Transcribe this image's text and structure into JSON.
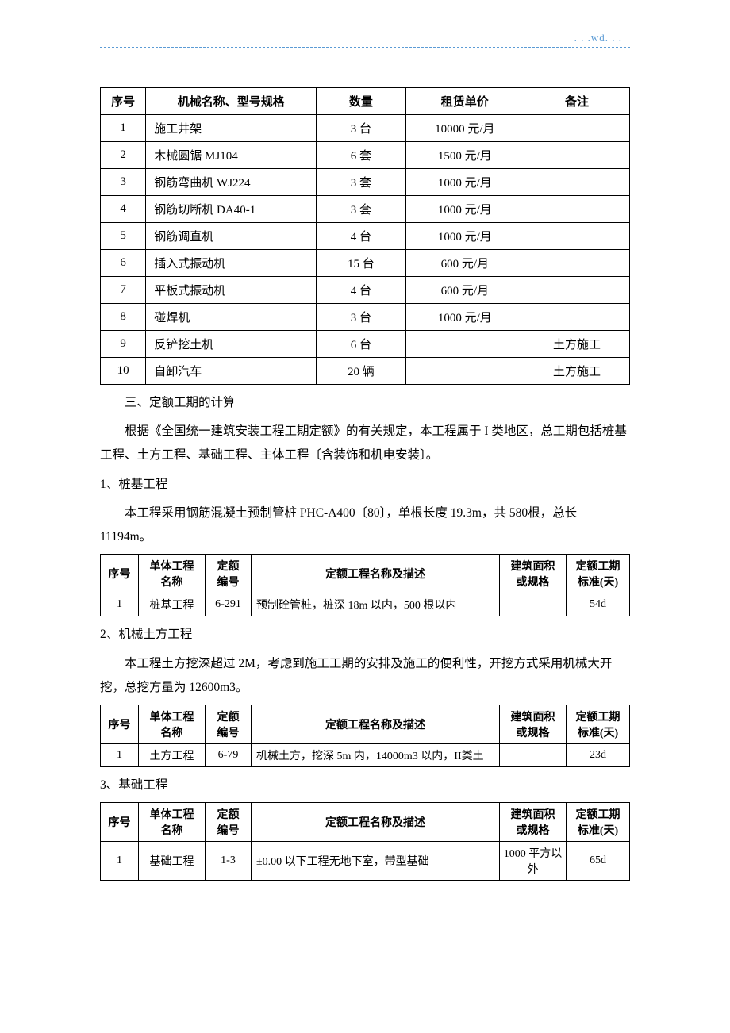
{
  "header": {
    "watermark": ". . .wd. . ."
  },
  "equip_table": {
    "headers": [
      "序号",
      "机械名称、型号规格",
      "数量",
      "租赁单价",
      "备注"
    ],
    "rows": [
      {
        "no": "1",
        "name": "施工井架",
        "qty": "3 台",
        "price": "10000 元/月",
        "note": ""
      },
      {
        "no": "2",
        "name": "木械圆锯 MJ104",
        "qty": "6 套",
        "price": "1500 元/月",
        "note": ""
      },
      {
        "no": "3",
        "name": "钢筋弯曲机 WJ224",
        "qty": "3 套",
        "price": "1000 元/月",
        "note": ""
      },
      {
        "no": "4",
        "name": "钢筋切断机 DA40-1",
        "qty": "3 套",
        "price": "1000 元/月",
        "note": ""
      },
      {
        "no": "5",
        "name": "钢筋调直机",
        "qty": "4 台",
        "price": "1000 元/月",
        "note": ""
      },
      {
        "no": "6",
        "name": "插入式振动机",
        "qty": "15 台",
        "price": "600 元/月",
        "note": ""
      },
      {
        "no": "7",
        "name": "平板式振动机",
        "qty": "4 台",
        "price": "600 元/月",
        "note": ""
      },
      {
        "no": "8",
        "name": "碰焊机",
        "qty": "3 台",
        "price": "1000 元/月",
        "note": ""
      },
      {
        "no": "9",
        "name": "反铲挖土机",
        "qty": "6 台",
        "price": "",
        "note": "土方施工"
      },
      {
        "no": "10",
        "name": "自卸汽车",
        "qty": "20 辆",
        "price": "",
        "note": "土方施工"
      }
    ]
  },
  "section3_title": "三、定额工期的计算",
  "section3_body": "根据《全国统一建筑安装工程工期定额》的有关规定，本工程属于 I 类地区，总工期包括桩基工程、土方工程、基础工程、主体工程〔含装饰和机电安装〕。",
  "sub1_title": "1、桩基工程",
  "sub1_body": "本工程采用钢筋混凝土预制管桩 PHC-A400〔80〕，单根长度 19.3m，共 580根，总长 11194m。",
  "sched_headers": {
    "c1": "序号",
    "c2": "单体工程名称",
    "c3": "定额编号",
    "c4": "定额工程名称及描述",
    "c5": "建筑面积或规格",
    "c6": "定额工期标准(天)"
  },
  "sched_headers_split": {
    "c2a": "单体工程",
    "c2b": "名称",
    "c3a": "定额",
    "c3b": "编号",
    "c5a": "建筑面积",
    "c5b": "或规格",
    "c6a": "定额工期",
    "c6b": "标准(天)"
  },
  "sub1_row": {
    "no": "1",
    "name": "桩基工程",
    "code": "6-291",
    "desc": "预制砼管桩，桩深 18m 以内，500 根以内",
    "spec": "",
    "std": "54d"
  },
  "sub2_title": "2、机械土方工程",
  "sub2_body": "本工程土方挖深超过 2M，考虑到施工工期的安排及施工的便利性，开挖方式采用机械大开挖，总挖方量为 12600m3。",
  "sub2_row": {
    "no": "1",
    "name": "土方工程",
    "code": "6-79",
    "desc": "机械土方，挖深 5m 内，14000m3 以内，II类土",
    "spec": "",
    "std": "23d"
  },
  "sub3_title": "3、基础工程",
  "sub3_row": {
    "no": "1",
    "name": "基础工程",
    "code": "1-3",
    "desc": "±0.00 以下工程无地下室，带型基础",
    "spec": "1000 平方以外",
    "std": "65d"
  }
}
